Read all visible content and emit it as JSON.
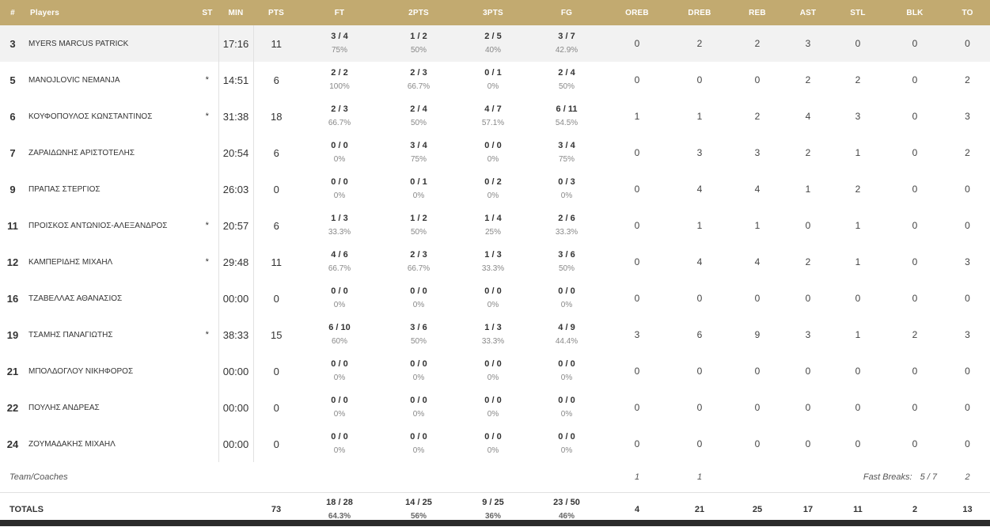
{
  "headers": [
    "#",
    "Players",
    "ST",
    "MIN",
    "PTS",
    "FT",
    "2PTS",
    "3PTS",
    "FG",
    "OREB",
    "DREB",
    "REB",
    "AST",
    "STL",
    "BLK",
    "TO"
  ],
  "players": [
    {
      "num": "3",
      "name": "MYERS MARCUS PATRICK",
      "st": "",
      "min": "17:16",
      "pts": "11",
      "ft": "3 / 4",
      "ft_pct": "75%",
      "p2": "1 / 2",
      "p2_pct": "50%",
      "p3": "2 / 5",
      "p3_pct": "40%",
      "fg": "3 / 7",
      "fg_pct": "42.9%",
      "oreb": "0",
      "dreb": "2",
      "reb": "2",
      "ast": "3",
      "stl": "0",
      "blk": "0",
      "to": "0"
    },
    {
      "num": "5",
      "name": "MANOJLOVIC NEMANJA",
      "st": "*",
      "min": "14:51",
      "pts": "6",
      "ft": "2 / 2",
      "ft_pct": "100%",
      "p2": "2 / 3",
      "p2_pct": "66.7%",
      "p3": "0 / 1",
      "p3_pct": "0%",
      "fg": "2 / 4",
      "fg_pct": "50%",
      "oreb": "0",
      "dreb": "0",
      "reb": "0",
      "ast": "2",
      "stl": "2",
      "blk": "0",
      "to": "2"
    },
    {
      "num": "6",
      "name": "ΚΟΥΦΟΠΟΥΛΟΣ ΚΩΝΣΤΑΝΤΙΝΟΣ",
      "st": "*",
      "min": "31:38",
      "pts": "18",
      "ft": "2 / 3",
      "ft_pct": "66.7%",
      "p2": "2 / 4",
      "p2_pct": "50%",
      "p3": "4 / 7",
      "p3_pct": "57.1%",
      "fg": "6 / 11",
      "fg_pct": "54.5%",
      "oreb": "1",
      "dreb": "1",
      "reb": "2",
      "ast": "4",
      "stl": "3",
      "blk": "0",
      "to": "3"
    },
    {
      "num": "7",
      "name": "ΖΑΡΑΙΔΩΝΗΣ ΑΡΙΣΤΟΤΕΛΗΣ",
      "st": "",
      "min": "20:54",
      "pts": "6",
      "ft": "0 / 0",
      "ft_pct": "0%",
      "p2": "3 / 4",
      "p2_pct": "75%",
      "p3": "0 / 0",
      "p3_pct": "0%",
      "fg": "3 / 4",
      "fg_pct": "75%",
      "oreb": "0",
      "dreb": "3",
      "reb": "3",
      "ast": "2",
      "stl": "1",
      "blk": "0",
      "to": "2"
    },
    {
      "num": "9",
      "name": "ΠΡΑΠΑΣ ΣΤΕΡΓΙΟΣ",
      "st": "",
      "min": "26:03",
      "pts": "0",
      "ft": "0 / 0",
      "ft_pct": "0%",
      "p2": "0 / 1",
      "p2_pct": "0%",
      "p3": "0 / 2",
      "p3_pct": "0%",
      "fg": "0 / 3",
      "fg_pct": "0%",
      "oreb": "0",
      "dreb": "4",
      "reb": "4",
      "ast": "1",
      "stl": "2",
      "blk": "0",
      "to": "0"
    },
    {
      "num": "11",
      "name": "ΠΡΟΙΣΚΟΣ ΑΝΤΩΝΙΟΣ-ΑΛΕΞΑΝΔΡΟΣ",
      "st": "*",
      "min": "20:57",
      "pts": "6",
      "ft": "1 / 3",
      "ft_pct": "33.3%",
      "p2": "1 / 2",
      "p2_pct": "50%",
      "p3": "1 / 4",
      "p3_pct": "25%",
      "fg": "2 / 6",
      "fg_pct": "33.3%",
      "oreb": "0",
      "dreb": "1",
      "reb": "1",
      "ast": "0",
      "stl": "1",
      "blk": "0",
      "to": "0"
    },
    {
      "num": "12",
      "name": "ΚΑΜΠΕΡΙΔΗΣ ΜΙΧΑΗΛ",
      "st": "*",
      "min": "29:48",
      "pts": "11",
      "ft": "4 / 6",
      "ft_pct": "66.7%",
      "p2": "2 / 3",
      "p2_pct": "66.7%",
      "p3": "1 / 3",
      "p3_pct": "33.3%",
      "fg": "3 / 6",
      "fg_pct": "50%",
      "oreb": "0",
      "dreb": "4",
      "reb": "4",
      "ast": "2",
      "stl": "1",
      "blk": "0",
      "to": "3"
    },
    {
      "num": "16",
      "name": "ΤΖΑΒΕΛΛΑΣ ΑΘΑΝΑΣΙΟΣ",
      "st": "",
      "min": "00:00",
      "pts": "0",
      "ft": "0 / 0",
      "ft_pct": "0%",
      "p2": "0 / 0",
      "p2_pct": "0%",
      "p3": "0 / 0",
      "p3_pct": "0%",
      "fg": "0 / 0",
      "fg_pct": "0%",
      "oreb": "0",
      "dreb": "0",
      "reb": "0",
      "ast": "0",
      "stl": "0",
      "blk": "0",
      "to": "0"
    },
    {
      "num": "19",
      "name": "ΤΣΑΜΗΣ ΠΑΝΑΓΙΩΤΗΣ",
      "st": "*",
      "min": "38:33",
      "pts": "15",
      "ft": "6 / 10",
      "ft_pct": "60%",
      "p2": "3 / 6",
      "p2_pct": "50%",
      "p3": "1 / 3",
      "p3_pct": "33.3%",
      "fg": "4 / 9",
      "fg_pct": "44.4%",
      "oreb": "3",
      "dreb": "6",
      "reb": "9",
      "ast": "3",
      "stl": "1",
      "blk": "2",
      "to": "3"
    },
    {
      "num": "21",
      "name": "ΜΠΟΛΔΟΓΛΟΥ ΝΙΚΗΦΟΡΟΣ",
      "st": "",
      "min": "00:00",
      "pts": "0",
      "ft": "0 / 0",
      "ft_pct": "0%",
      "p2": "0 / 0",
      "p2_pct": "0%",
      "p3": "0 / 0",
      "p3_pct": "0%",
      "fg": "0 / 0",
      "fg_pct": "0%",
      "oreb": "0",
      "dreb": "0",
      "reb": "0",
      "ast": "0",
      "stl": "0",
      "blk": "0",
      "to": "0"
    },
    {
      "num": "22",
      "name": "ΠΟΥΛΗΣ ΑΝΔΡΕΑΣ",
      "st": "",
      "min": "00:00",
      "pts": "0",
      "ft": "0 / 0",
      "ft_pct": "0%",
      "p2": "0 / 0",
      "p2_pct": "0%",
      "p3": "0 / 0",
      "p3_pct": "0%",
      "fg": "0 / 0",
      "fg_pct": "0%",
      "oreb": "0",
      "dreb": "0",
      "reb": "0",
      "ast": "0",
      "stl": "0",
      "blk": "0",
      "to": "0"
    },
    {
      "num": "24",
      "name": "ΖΟΥΜΑΔΑΚΗΣ ΜΙΧΑΗΛ",
      "st": "",
      "min": "00:00",
      "pts": "0",
      "ft": "0 / 0",
      "ft_pct": "0%",
      "p2": "0 / 0",
      "p2_pct": "0%",
      "p3": "0 / 0",
      "p3_pct": "0%",
      "fg": "0 / 0",
      "fg_pct": "0%",
      "oreb": "0",
      "dreb": "0",
      "reb": "0",
      "ast": "0",
      "stl": "0",
      "blk": "0",
      "to": "0"
    }
  ],
  "team": {
    "label": "Team/Coaches",
    "oreb": "1",
    "dreb": "1",
    "fast_breaks_label": "Fast Breaks:",
    "fast_breaks_value": "5 / 7",
    "to": "2"
  },
  "totals": {
    "label": "TOTALS",
    "pts": "73",
    "ft": "18 / 28",
    "ft_pct": "64.3%",
    "p2": "14 / 25",
    "p2_pct": "56%",
    "p3": "9 / 25",
    "p3_pct": "36%",
    "fg": "23 / 50",
    "fg_pct": "46%",
    "oreb": "4",
    "dreb": "21",
    "reb": "25",
    "ast": "17",
    "stl": "11",
    "blk": "2",
    "to": "13"
  },
  "colors": {
    "header_bg": "#c2aa70",
    "alt_row_bg": "#f2f2f2"
  }
}
